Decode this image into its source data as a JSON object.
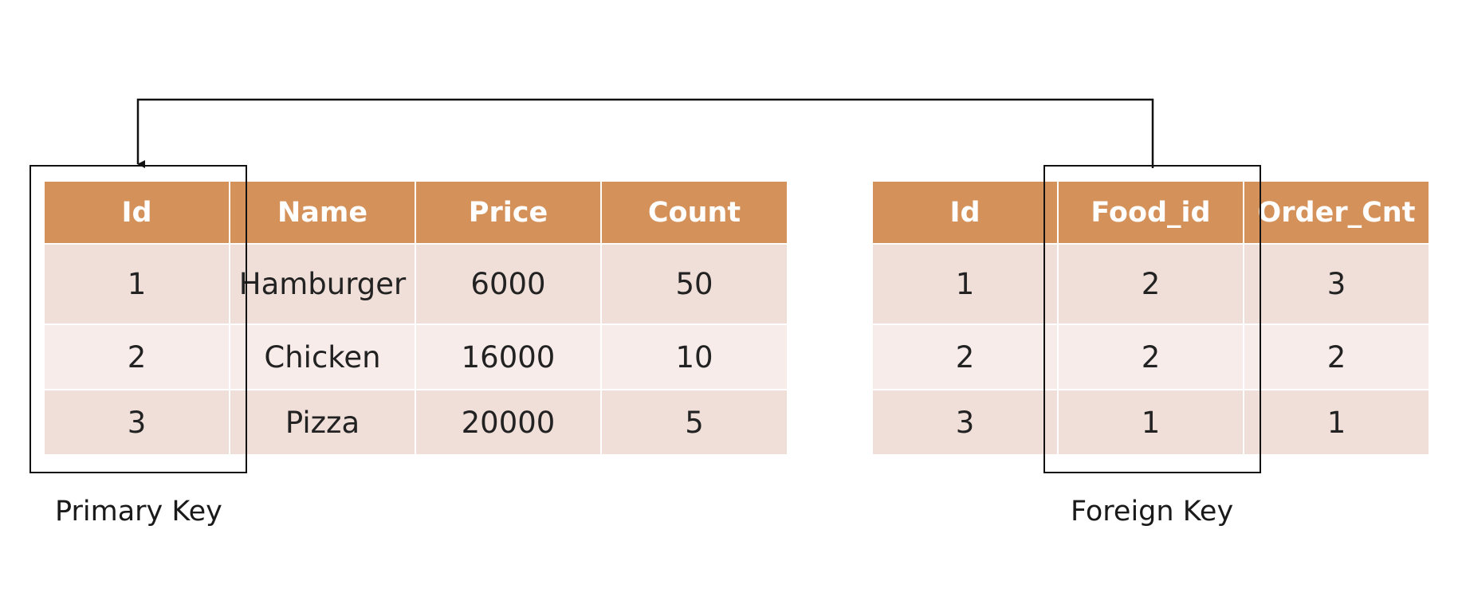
{
  "food_table": {
    "headers": [
      "Id",
      "Name",
      "Price",
      "Count"
    ],
    "rows": [
      [
        "1",
        "Hamburger",
        "6000",
        "50"
      ],
      [
        "2",
        "Chicken",
        "16000",
        "10"
      ],
      [
        "3",
        "Pizza",
        "20000",
        "5"
      ]
    ]
  },
  "order_table": {
    "headers": [
      "Id",
      "Food_id",
      "Order_Cnt"
    ],
    "rows": [
      [
        "1",
        "2",
        "3"
      ],
      [
        "2",
        "2",
        "2"
      ],
      [
        "3",
        "1",
        "1"
      ]
    ]
  },
  "labels": {
    "primary_key": "Primary Key",
    "foreign_key": "Foreign Key"
  },
  "colors": {
    "header_bg": "#d5915a",
    "row_dark": "#f0dfd8",
    "row_light": "#f7ecea"
  }
}
